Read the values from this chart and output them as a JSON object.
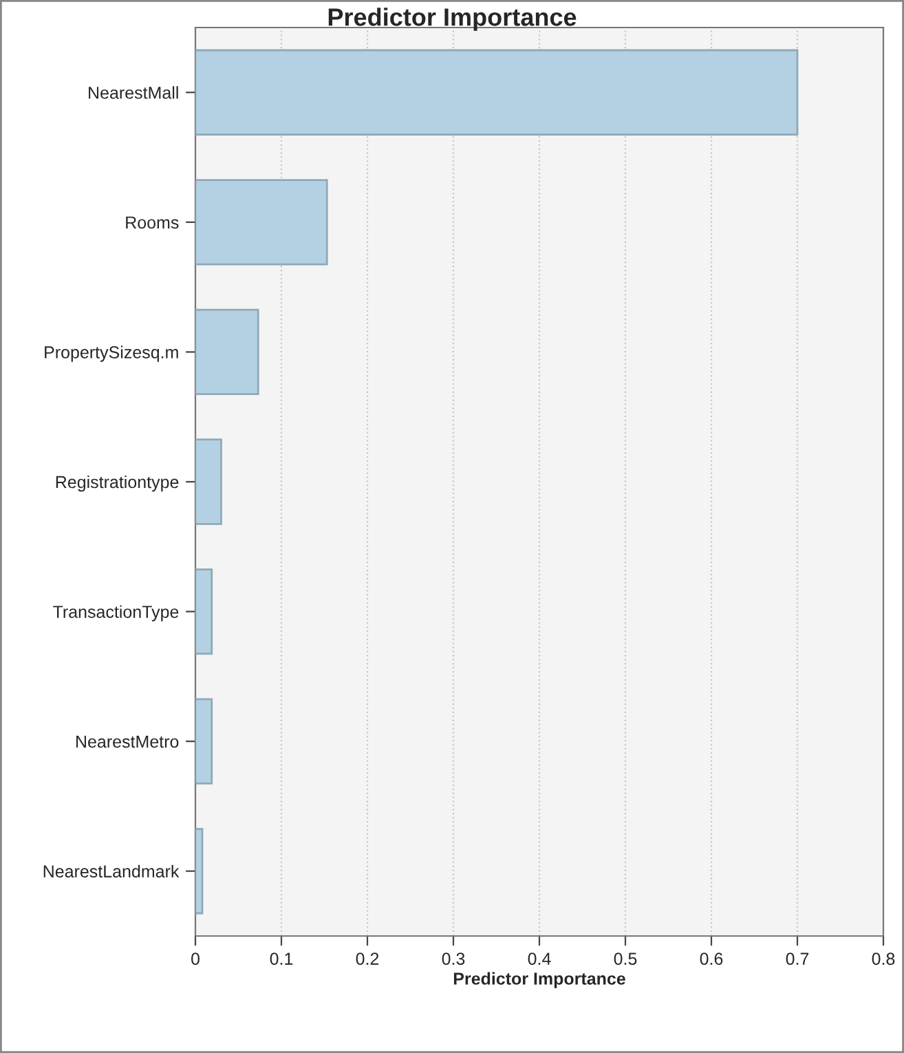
{
  "chart_data": {
    "type": "bar",
    "orientation": "horizontal",
    "title": "Predictor Importance",
    "xlabel": "Predictor Importance",
    "categories": [
      "NearestMall",
      "Rooms",
      "PropertySizesq.m",
      "Registrationtype",
      "TransactionType",
      "NearestMetro",
      "NearestLandmark"
    ],
    "values": [
      0.7,
      0.153,
      0.073,
      0.03,
      0.019,
      0.019,
      0.008
    ],
    "color": "#b3d1e3",
    "xlim": [
      0,
      0.8
    ],
    "xticks": [
      0,
      0.1,
      0.2,
      0.3,
      0.4,
      0.5,
      0.6,
      0.7,
      0.8
    ],
    "grid": "x"
  }
}
